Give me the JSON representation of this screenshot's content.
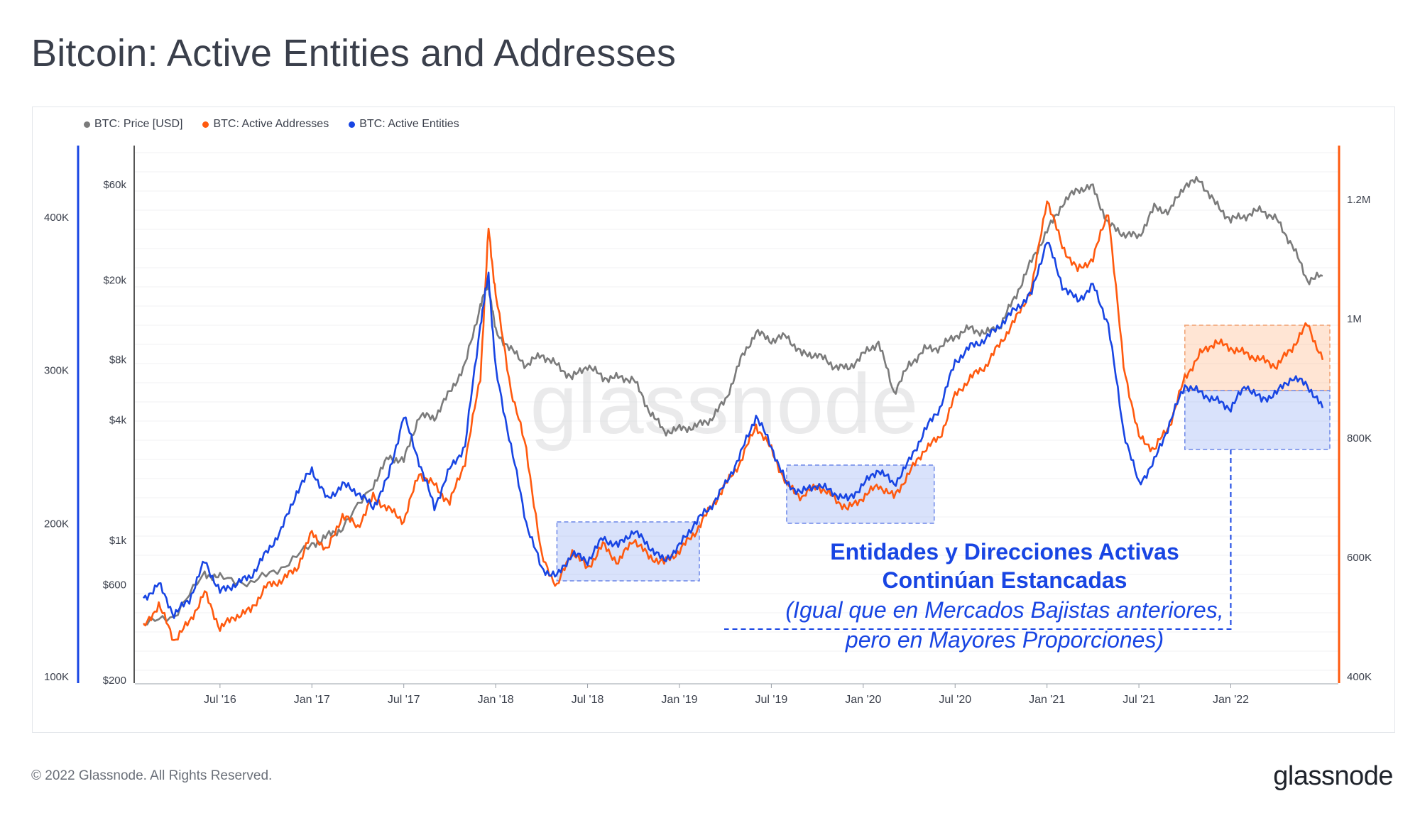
{
  "title": "Bitcoin: Active Entities and Addresses",
  "legend": [
    {
      "label": "BTC: Price [USD]",
      "color": "#7b7b7b"
    },
    {
      "label": "BTC: Active Addresses",
      "color": "#ff5a0f"
    },
    {
      "label": "BTC: Active Entities",
      "color": "#1845e3"
    }
  ],
  "watermark": "glassnode",
  "annotation": {
    "line1": "Entidades y Direcciones Activas",
    "line2": "Continúan Estancadas",
    "line3": "(Igual que en Mercados Bajistas anteriores,",
    "line4": "pero en Mayores Proporciones)",
    "color": "#1845e3"
  },
  "footer": "© 2022 Glassnode. All Rights Reserved.",
  "logo": "glassnode",
  "chart_data": {
    "type": "line",
    "title": "Bitcoin: Active Entities and Addresses",
    "x_ticks": [
      "Jul '16",
      "Jan '17",
      "Jul '17",
      "Jan '18",
      "Jul '18",
      "Jan '19",
      "Jul '19",
      "Jan '20",
      "Jul '20",
      "Jan '21",
      "Jul '21",
      "Jan '22"
    ],
    "x_range": [
      "2016-02",
      "2022-07"
    ],
    "y_left_entities": {
      "ticks": [
        "100K",
        "200K",
        "300K",
        "400K"
      ],
      "values": [
        100000,
        200000,
        300000,
        400000
      ],
      "range": [
        100000,
        430000
      ]
    },
    "y_price": {
      "scale": "log",
      "ticks": [
        "$200",
        "$600",
        "$1k",
        "$4k",
        "$8k",
        "$20k",
        "$60k"
      ],
      "values": [
        200,
        600,
        1000,
        4000,
        8000,
        20000,
        60000
      ]
    },
    "y_right_addresses": {
      "ticks": [
        "400K",
        "600K",
        "800K",
        "1M",
        "1.2M"
      ],
      "values": [
        400000,
        600000,
        800000,
        1000000,
        1200000
      ],
      "range": [
        400000,
        1240000
      ]
    },
    "grid": true,
    "legend_position": "top-left",
    "series": [
      {
        "name": "BTC: Price [USD]",
        "axis": "price",
        "color": "#7b7b7b",
        "points": [
          [
            "2016-02",
            380
          ],
          [
            "2016-04",
            420
          ],
          [
            "2016-06",
            680
          ],
          [
            "2016-07",
            650
          ],
          [
            "2016-09",
            610
          ],
          [
            "2016-11",
            730
          ],
          [
            "2017-01",
            950
          ],
          [
            "2017-02",
            1050
          ],
          [
            "2017-03",
            1150
          ],
          [
            "2017-05",
            1900
          ],
          [
            "2017-06",
            2600
          ],
          [
            "2017-07",
            2500
          ],
          [
            "2017-08",
            4200
          ],
          [
            "2017-09",
            4100
          ],
          [
            "2017-10",
            5500
          ],
          [
            "2017-11",
            7500
          ],
          [
            "2017-12",
            15000
          ],
          [
            "2017-12-17",
            19000
          ],
          [
            "2018-01",
            11000
          ],
          [
            "2018-02",
            9000
          ],
          [
            "2018-03",
            7500
          ],
          [
            "2018-04",
            8500
          ],
          [
            "2018-05",
            7500
          ],
          [
            "2018-06",
            6500
          ],
          [
            "2018-07",
            7500
          ],
          [
            "2018-08",
            6500
          ],
          [
            "2018-09",
            6500
          ],
          [
            "2018-10",
            6400
          ],
          [
            "2018-11",
            4500
          ],
          [
            "2018-12",
            3500
          ],
          [
            "2019-01",
            3600
          ],
          [
            "2019-02",
            3700
          ],
          [
            "2019-03",
            4000
          ],
          [
            "2019-04",
            5000
          ],
          [
            "2019-05",
            8000
          ],
          [
            "2019-06",
            11000
          ],
          [
            "2019-07",
            10000
          ],
          [
            "2019-08",
            10500
          ],
          [
            "2019-09",
            8500
          ],
          [
            "2019-10",
            8500
          ],
          [
            "2019-11",
            7500
          ],
          [
            "2019-12",
            7200
          ],
          [
            "2020-01",
            8500
          ],
          [
            "2020-02",
            9800
          ],
          [
            "2020-03",
            5500
          ],
          [
            "2020-04",
            7500
          ],
          [
            "2020-05",
            9000
          ],
          [
            "2020-06",
            9200
          ],
          [
            "2020-07",
            10500
          ],
          [
            "2020-08",
            11500
          ],
          [
            "2020-09",
            10800
          ],
          [
            "2020-10",
            12000
          ],
          [
            "2020-11",
            17000
          ],
          [
            "2020-12",
            25000
          ],
          [
            "2021-01",
            35000
          ],
          [
            "2021-02",
            48000
          ],
          [
            "2021-03",
            57000
          ],
          [
            "2021-04",
            58000
          ],
          [
            "2021-05",
            38000
          ],
          [
            "2021-06",
            34000
          ],
          [
            "2021-07",
            33000
          ],
          [
            "2021-08",
            46000
          ],
          [
            "2021-09",
            44000
          ],
          [
            "2021-10",
            60000
          ],
          [
            "2021-11",
            63000
          ],
          [
            "2021-12",
            48000
          ],
          [
            "2022-01",
            40000
          ],
          [
            "2022-02",
            42000
          ],
          [
            "2022-03",
            45000
          ],
          [
            "2022-04",
            40000
          ],
          [
            "2022-05",
            30000
          ],
          [
            "2022-06",
            20000
          ],
          [
            "2022-07",
            21000
          ]
        ]
      },
      {
        "name": "BTC: Active Addresses",
        "axis": "addresses",
        "color": "#ff5a0f",
        "points": [
          [
            "2016-02",
            480000
          ],
          [
            "2016-03",
            520000
          ],
          [
            "2016-04",
            460000
          ],
          [
            "2016-05",
            490000
          ],
          [
            "2016-06",
            540000
          ],
          [
            "2016-07",
            480000
          ],
          [
            "2016-08",
            500000
          ],
          [
            "2016-09",
            510000
          ],
          [
            "2016-10",
            550000
          ],
          [
            "2016-11",
            560000
          ],
          [
            "2016-12",
            580000
          ],
          [
            "2017-01",
            640000
          ],
          [
            "2017-02",
            610000
          ],
          [
            "2017-03",
            670000
          ],
          [
            "2017-04",
            650000
          ],
          [
            "2017-05",
            700000
          ],
          [
            "2017-06",
            680000
          ],
          [
            "2017-07",
            660000
          ],
          [
            "2017-08",
            740000
          ],
          [
            "2017-09",
            720000
          ],
          [
            "2017-10",
            690000
          ],
          [
            "2017-11",
            760000
          ],
          [
            "2017-12",
            900000
          ],
          [
            "2017-12-17",
            1150000
          ],
          [
            "2018-01",
            1040000
          ],
          [
            "2018-02",
            880000
          ],
          [
            "2018-03",
            780000
          ],
          [
            "2018-04",
            600000
          ],
          [
            "2018-05",
            550000
          ],
          [
            "2018-06",
            610000
          ],
          [
            "2018-07",
            580000
          ],
          [
            "2018-08",
            620000
          ],
          [
            "2018-09",
            590000
          ],
          [
            "2018-10",
            630000
          ],
          [
            "2018-11",
            600000
          ],
          [
            "2018-12",
            590000
          ],
          [
            "2019-01",
            610000
          ],
          [
            "2019-02",
            640000
          ],
          [
            "2019-03",
            680000
          ],
          [
            "2019-04",
            720000
          ],
          [
            "2019-05",
            760000
          ],
          [
            "2019-06",
            820000
          ],
          [
            "2019-07",
            780000
          ],
          [
            "2019-08",
            720000
          ],
          [
            "2019-09",
            700000
          ],
          [
            "2019-10",
            720000
          ],
          [
            "2019-11",
            700000
          ],
          [
            "2019-12",
            680000
          ],
          [
            "2020-01",
            700000
          ],
          [
            "2020-02",
            720000
          ],
          [
            "2020-03",
            700000
          ],
          [
            "2020-04",
            740000
          ],
          [
            "2020-05",
            780000
          ],
          [
            "2020-06",
            800000
          ],
          [
            "2020-07",
            870000
          ],
          [
            "2020-08",
            900000
          ],
          [
            "2020-09",
            920000
          ],
          [
            "2020-10",
            960000
          ],
          [
            "2020-11",
            1000000
          ],
          [
            "2020-12",
            1050000
          ],
          [
            "2021-01",
            1200000
          ],
          [
            "2021-02",
            1120000
          ],
          [
            "2021-03",
            1080000
          ],
          [
            "2021-04",
            1100000
          ],
          [
            "2021-05",
            1180000
          ],
          [
            "2021-06",
            920000
          ],
          [
            "2021-07",
            800000
          ],
          [
            "2021-08",
            780000
          ],
          [
            "2021-09",
            820000
          ],
          [
            "2021-10",
            900000
          ],
          [
            "2021-11",
            940000
          ],
          [
            "2021-12",
            960000
          ],
          [
            "2022-01",
            950000
          ],
          [
            "2022-02",
            940000
          ],
          [
            "2022-03",
            930000
          ],
          [
            "2022-04",
            920000
          ],
          [
            "2022-05",
            950000
          ],
          [
            "2022-06",
            990000
          ],
          [
            "2022-07",
            930000
          ]
        ]
      },
      {
        "name": "BTC: Active Entities",
        "axis": "entities",
        "color": "#1845e3",
        "points": [
          [
            "2016-02",
            150000
          ],
          [
            "2016-03",
            160000
          ],
          [
            "2016-04",
            140000
          ],
          [
            "2016-05",
            150000
          ],
          [
            "2016-06",
            175000
          ],
          [
            "2016-07",
            155000
          ],
          [
            "2016-08",
            160000
          ],
          [
            "2016-09",
            165000
          ],
          [
            "2016-10",
            180000
          ],
          [
            "2016-11",
            195000
          ],
          [
            "2016-12",
            220000
          ],
          [
            "2017-01",
            235000
          ],
          [
            "2017-02",
            215000
          ],
          [
            "2017-03",
            225000
          ],
          [
            "2017-04",
            220000
          ],
          [
            "2017-05",
            210000
          ],
          [
            "2017-06",
            230000
          ],
          [
            "2017-07",
            270000
          ],
          [
            "2017-08",
            240000
          ],
          [
            "2017-09",
            210000
          ],
          [
            "2017-10",
            235000
          ],
          [
            "2017-11",
            250000
          ],
          [
            "2017-12",
            330000
          ],
          [
            "2017-12-17",
            362000
          ],
          [
            "2018-01",
            300000
          ],
          [
            "2018-02",
            250000
          ],
          [
            "2018-03",
            200000
          ],
          [
            "2018-04",
            170000
          ],
          [
            "2018-05",
            165000
          ],
          [
            "2018-06",
            180000
          ],
          [
            "2018-07",
            175000
          ],
          [
            "2018-08",
            190000
          ],
          [
            "2018-09",
            185000
          ],
          [
            "2018-10",
            195000
          ],
          [
            "2018-11",
            185000
          ],
          [
            "2018-12",
            175000
          ],
          [
            "2019-01",
            185000
          ],
          [
            "2019-02",
            200000
          ],
          [
            "2019-03",
            210000
          ],
          [
            "2019-04",
            225000
          ],
          [
            "2019-05",
            245000
          ],
          [
            "2019-06",
            270000
          ],
          [
            "2019-07",
            250000
          ],
          [
            "2019-08",
            225000
          ],
          [
            "2019-09",
            220000
          ],
          [
            "2019-10",
            225000
          ],
          [
            "2019-11",
            220000
          ],
          [
            "2019-12",
            215000
          ],
          [
            "2020-01",
            225000
          ],
          [
            "2020-02",
            235000
          ],
          [
            "2020-03",
            225000
          ],
          [
            "2020-04",
            240000
          ],
          [
            "2020-05",
            260000
          ],
          [
            "2020-06",
            275000
          ],
          [
            "2020-07",
            305000
          ],
          [
            "2020-08",
            315000
          ],
          [
            "2020-09",
            320000
          ],
          [
            "2020-10",
            330000
          ],
          [
            "2020-11",
            340000
          ],
          [
            "2020-12",
            350000
          ],
          [
            "2021-01",
            385000
          ],
          [
            "2021-02",
            355000
          ],
          [
            "2021-03",
            345000
          ],
          [
            "2021-04",
            355000
          ],
          [
            "2021-05",
            330000
          ],
          [
            "2021-06",
            260000
          ],
          [
            "2021-07",
            225000
          ],
          [
            "2021-08",
            240000
          ],
          [
            "2021-09",
            265000
          ],
          [
            "2021-10",
            290000
          ],
          [
            "2021-11",
            285000
          ],
          [
            "2021-12",
            280000
          ],
          [
            "2022-01",
            275000
          ],
          [
            "2022-02",
            290000
          ],
          [
            "2022-03",
            280000
          ],
          [
            "2022-04",
            285000
          ],
          [
            "2022-05",
            295000
          ],
          [
            "2022-06",
            290000
          ],
          [
            "2022-07",
            275000
          ]
        ]
      }
    ]
  }
}
